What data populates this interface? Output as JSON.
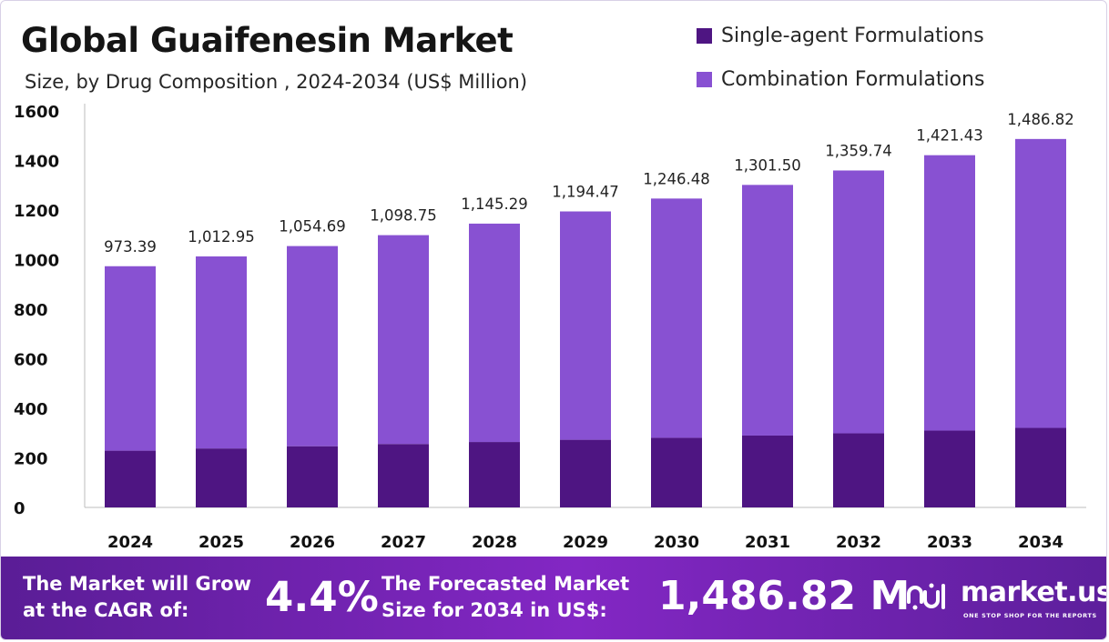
{
  "chart_data": {
    "type": "bar",
    "stacked": true,
    "title": "Global Guaifenesin Market",
    "subtitle": "Size, by Drug Composition , 2024-2034 (US$ Million)",
    "xlabel": "",
    "ylabel": "",
    "categories": [
      "2024",
      "2025",
      "2026",
      "2027",
      "2028",
      "2029",
      "2030",
      "2031",
      "2032",
      "2033",
      "2034"
    ],
    "series": [
      {
        "name": "Single-agent Formulations",
        "color": "#4e1582",
        "values": [
          229,
          238,
          247,
          256,
          264,
          273,
          281,
          290,
          299,
          310,
          321
        ]
      },
      {
        "name": "Combination Formulations",
        "color": "#8851d2",
        "values": [
          744.39,
          774.95,
          807.69,
          842.75,
          881.29,
          921.47,
          965.48,
          1011.5,
          1060.74,
          1111.43,
          1165.82
        ]
      }
    ],
    "totals": [
      973.39,
      1012.95,
      1054.69,
      1098.75,
      1145.29,
      1194.47,
      1246.48,
      1301.5,
      1359.74,
      1421.43,
      1486.82
    ],
    "total_labels": [
      "973.39",
      "1,012.95",
      "1,054.69",
      "1,098.75",
      "1,145.29",
      "1,194.47",
      "1,246.48",
      "1,301.50",
      "1,359.74",
      "1,421.43",
      "1,486.82"
    ],
    "yticks": [
      0,
      200,
      400,
      600,
      800,
      1000,
      1200,
      1400,
      1600
    ],
    "ylim": [
      0,
      1600
    ],
    "legend_position": "top-right",
    "grid": false
  },
  "footer": {
    "cagr_label_line1": "The Market will Grow",
    "cagr_label_line2": "at the CAGR of:",
    "cagr_value": "4.4%",
    "forecast_label_line1": "The Forecasted Market",
    "forecast_label_line2": "Size for 2034 in US$:",
    "forecast_value": "1,486.82 M",
    "brand_name": "market.us",
    "brand_tagline": "ONE STOP SHOP FOR THE REPORTS"
  }
}
